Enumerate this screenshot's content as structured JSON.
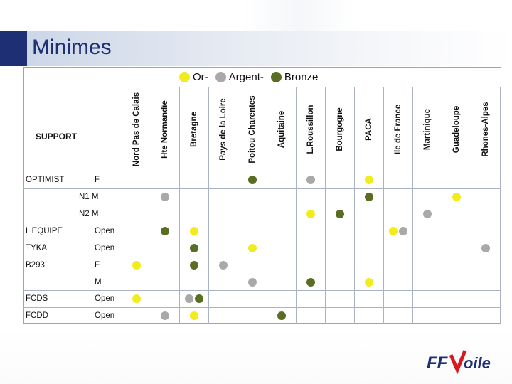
{
  "slide": {
    "title": "Minimes"
  },
  "legend": {
    "items": [
      {
        "label": "Or",
        "suffix": " -",
        "color": "#f2ec1c"
      },
      {
        "label": "Argent",
        "suffix": " -",
        "color": "#a9a9a9"
      },
      {
        "label": "Bronze",
        "suffix": "",
        "color": "#5a6e23"
      }
    ]
  },
  "table": {
    "support_label": "SUPPORT",
    "regions": [
      "Nord Pas de Calais",
      "Hte Normandie",
      "Bretagne",
      "Pays de la Loire",
      "Poitou Charentes",
      "Aquitaine",
      "L.Roussillon",
      "Bourgogne",
      "PACA",
      "Ile de France",
      "Martinique",
      "Guadeloupe",
      "Rhones-Alpes"
    ],
    "rows": [
      {
        "support": "OPTIMIST",
        "category": "F",
        "medals": [
          [
            4,
            "bronze"
          ],
          [
            6,
            "argent"
          ],
          [
            8,
            "or"
          ]
        ]
      },
      {
        "support": "",
        "category": "N1  M",
        "medals": [
          [
            1,
            "argent"
          ],
          [
            8,
            "bronze"
          ],
          [
            11,
            "or"
          ]
        ]
      },
      {
        "support": "",
        "category": "N2  M",
        "medals": [
          [
            6,
            "or"
          ],
          [
            7,
            "bronze"
          ],
          [
            10,
            "argent"
          ]
        ]
      },
      {
        "support": "L'EQUIPE",
        "category": "Open",
        "medals": [
          [
            1,
            "bronze"
          ],
          [
            2,
            "or"
          ],
          [
            9,
            "or"
          ],
          [
            9,
            "argent"
          ]
        ]
      },
      {
        "support": "TYKA",
        "category": "Open",
        "medals": [
          [
            2,
            "bronze"
          ],
          [
            4,
            "or"
          ],
          [
            12,
            "argent"
          ]
        ]
      },
      {
        "support": "B293",
        "category": "F",
        "medals": [
          [
            0,
            "or"
          ],
          [
            2,
            "bronze"
          ],
          [
            3,
            "argent"
          ]
        ]
      },
      {
        "support": "",
        "category": "M",
        "medals": [
          [
            4,
            "argent"
          ],
          [
            6,
            "bronze"
          ],
          [
            8,
            "or"
          ]
        ]
      },
      {
        "support": "FCDS",
        "category": "Open",
        "medals": [
          [
            0,
            "or"
          ],
          [
            2,
            "argent"
          ],
          [
            2,
            "bronze"
          ]
        ]
      },
      {
        "support": "FCDD",
        "category": "Open",
        "medals": [
          [
            1,
            "argent"
          ],
          [
            2,
            "or"
          ],
          [
            5,
            "bronze"
          ]
        ]
      }
    ]
  },
  "colors": {
    "or": "#f2ec1c",
    "argent": "#a9a9a9",
    "bronze": "#5a6e23",
    "title": "#1e2f73",
    "logo_blue": "#1e2f73",
    "logo_red": "#d71920"
  },
  "logo": {
    "ff": "FF",
    "text": "oile"
  }
}
